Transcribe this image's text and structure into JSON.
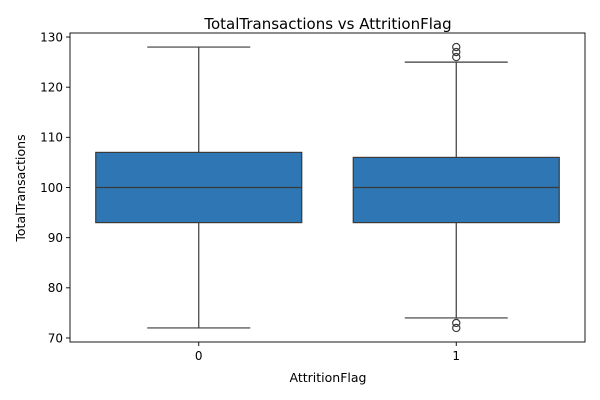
{
  "chart_data": {
    "type": "box",
    "title": "TotalTransactions vs AttritionFlag",
    "xlabel": "AttritionFlag",
    "ylabel": "TotalTransactions",
    "categories": [
      "0",
      "1"
    ],
    "ylim": [
      69.2,
      130.8
    ],
    "yticks": [
      70,
      80,
      90,
      100,
      110,
      120,
      130
    ],
    "grid": false,
    "box_color": "#2f77b4",
    "edge_color": "#3a3a3a",
    "boxes": [
      {
        "category": "0",
        "whisker_low": 72,
        "q1": 93,
        "median": 100,
        "q3": 107,
        "whisker_high": 128,
        "outliers": []
      },
      {
        "category": "1",
        "whisker_low": 74,
        "q1": 93,
        "median": 100,
        "q3": 106,
        "whisker_high": 125,
        "outliers": [
          72,
          73,
          126,
          127,
          128
        ]
      }
    ]
  }
}
